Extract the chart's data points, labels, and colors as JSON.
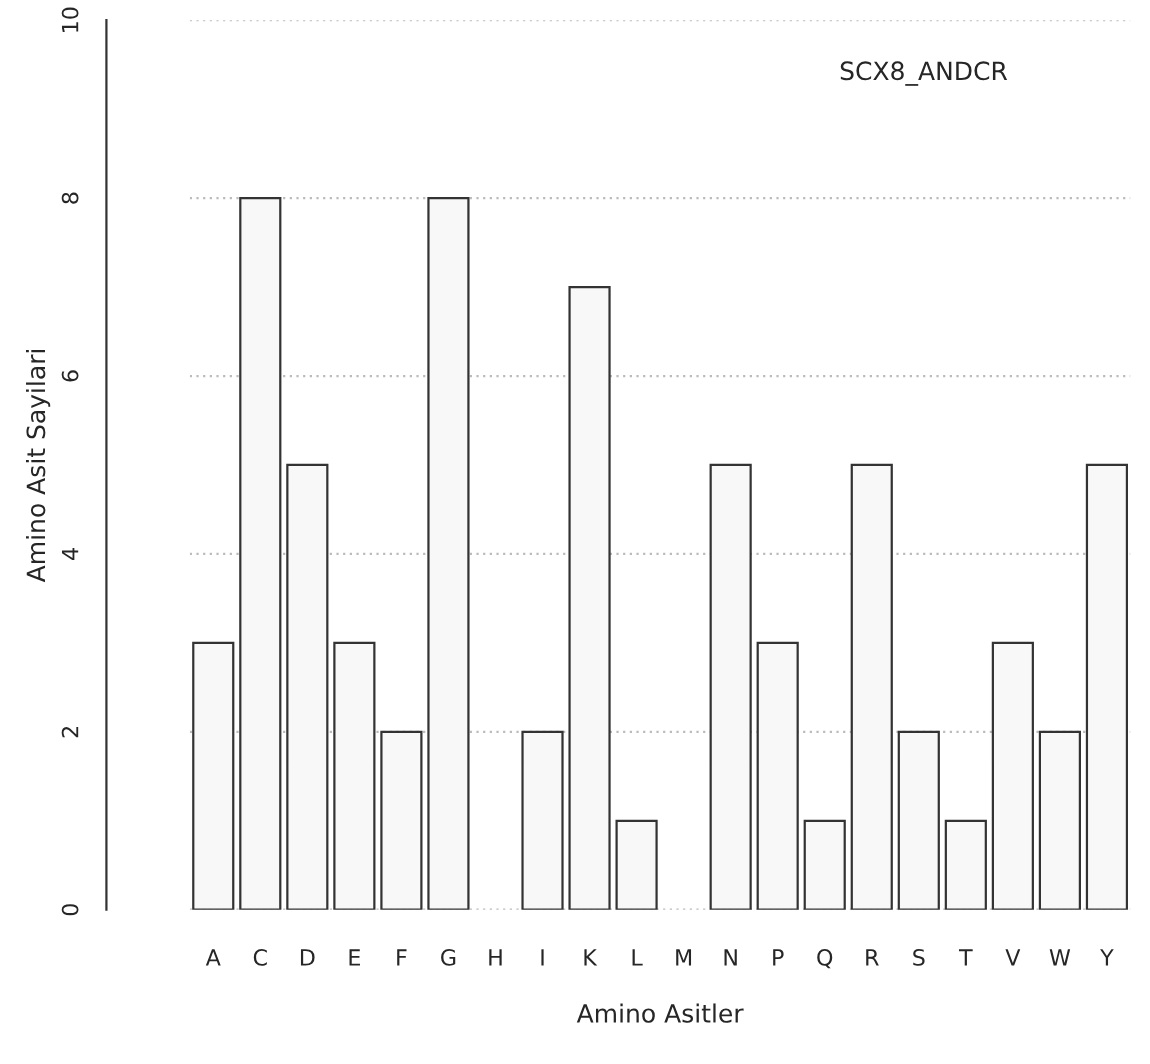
{
  "chart_data": {
    "type": "bar",
    "xlabel": "Amino Asitler",
    "ylabel": "Amino Asit Sayilari",
    "annotations": [
      "SCX8_ANDCR"
    ],
    "categories": [
      "A",
      "C",
      "D",
      "E",
      "F",
      "G",
      "H",
      "I",
      "K",
      "L",
      "M",
      "N",
      "P",
      "Q",
      "R",
      "S",
      "T",
      "V",
      "W",
      "Y"
    ],
    "values": [
      3,
      8,
      5,
      3,
      2,
      8,
      0,
      2,
      7,
      1,
      0,
      5,
      3,
      1,
      5,
      2,
      1,
      3,
      2,
      5
    ],
    "color": "#f8f8f8",
    "ylim": [
      0,
      10
    ],
    "yticks": [
      0,
      2,
      4,
      6,
      8,
      10
    ],
    "grid": "y"
  }
}
